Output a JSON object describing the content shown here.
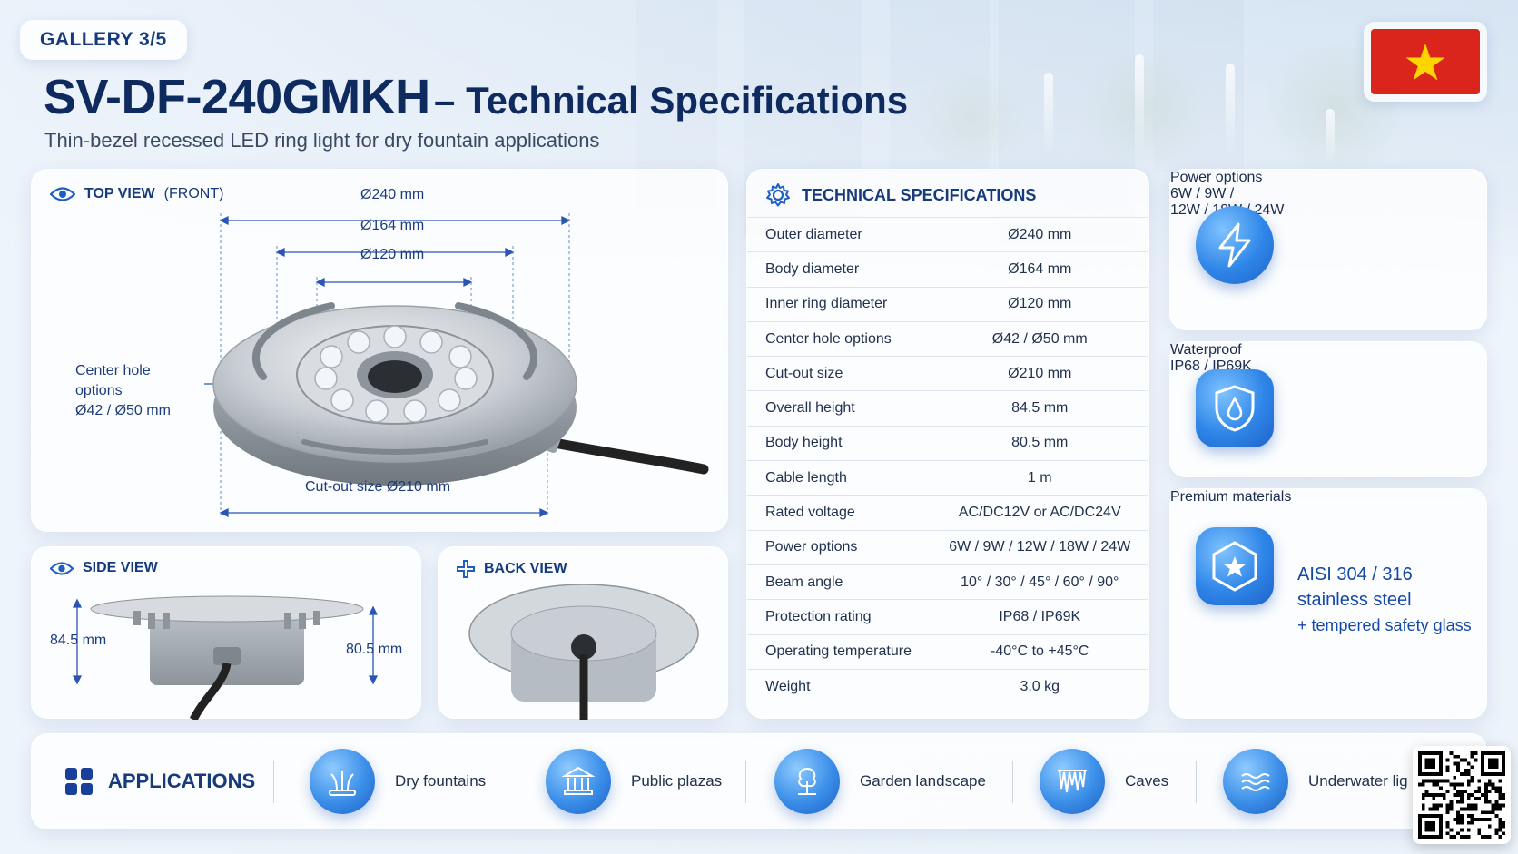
{
  "gallery": {
    "label": "GALLERY 3/5"
  },
  "header": {
    "model": "SV-DF-240GMKH",
    "title_rest": "– Technical Specifications",
    "subtitle": "Thin-bezel recessed LED ring light for dry fountain applications",
    "flag_icon": "vietnam-flag-icon"
  },
  "top_view": {
    "title": "TOP VIEW",
    "title_sub": "(FRONT)",
    "icon": "eye-icon",
    "dims": {
      "outer": "Ø240 mm",
      "body": "Ø164 mm",
      "inner": "Ø120 mm",
      "cutout": "Cut-out size Ø210 mm",
      "center_hole_line1": "Center hole",
      "center_hole_line2": "options",
      "center_hole_line3": "Ø42 / Ø50 mm"
    }
  },
  "side_view": {
    "title": "SIDE VIEW",
    "icon": "eye-icon",
    "overall_height": "84.5 mm",
    "body_height": "80.5 mm"
  },
  "back_view": {
    "title": "BACK VIEW",
    "icon": "plus-icon"
  },
  "specs": {
    "title": "TECHNICAL SPECIFICATIONS",
    "icon": "gear-icon",
    "rows": [
      {
        "k": "Outer diameter",
        "v": "Ø240 mm"
      },
      {
        "k": "Body diameter",
        "v": "Ø164 mm"
      },
      {
        "k": "Inner ring diameter",
        "v": "Ø120 mm"
      },
      {
        "k": "Center hole options",
        "v": "Ø42 / Ø50 mm"
      },
      {
        "k": "Cut-out size",
        "v": "Ø210 mm"
      },
      {
        "k": "Overall height",
        "v": "84.5 mm"
      },
      {
        "k": "Body height",
        "v": "80.5 mm"
      },
      {
        "k": "Cable length",
        "v": "1 m"
      },
      {
        "k": "Rated voltage",
        "v": "AC/DC12V or AC/DC24V"
      },
      {
        "k": "Power options",
        "v": "6W / 9W / 12W / 18W / 24W"
      },
      {
        "k": "Beam angle",
        "v": "10° / 30° / 45° / 60° / 90°"
      },
      {
        "k": "Protection rating",
        "v": "IP68 / IP69K"
      },
      {
        "k": "Operating temperature",
        "v": "-40°C to +45°C"
      },
      {
        "k": "Weight",
        "v": "3.0 kg"
      }
    ]
  },
  "features": {
    "power": {
      "label": "Power options",
      "line1": "6W / 9W /",
      "line2": "12W / 18W / 24W",
      "icon": "lightning-icon"
    },
    "waterproof": {
      "label": "Waterproof",
      "value": "IP68 / IP69K",
      "icon": "water-drop-shield-icon"
    },
    "materials": {
      "label": "Premium materials",
      "line1": "AISI 304 / 316",
      "line2": "stainless steel",
      "line3": "+ tempered safety glass",
      "icon": "star-hexagon-icon"
    }
  },
  "applications": {
    "title": "APPLICATIONS",
    "icon": "grid-icon",
    "items": [
      {
        "label": "Dry fountains",
        "icon": "fountain-icon"
      },
      {
        "label": "Public plazas",
        "icon": "building-icon"
      },
      {
        "label": "Garden landscape",
        "icon": "tree-icon"
      },
      {
        "label": "Caves",
        "icon": "cave-icon"
      },
      {
        "label": "Underwater lig",
        "icon": "waves-icon"
      }
    ]
  },
  "qr": {
    "icon": "qr-code-icon"
  },
  "colors": {
    "brand_navy": "#0f2a5f",
    "accent_blue": "#1648a8",
    "icon_blue": "#2f86e8",
    "flag_red": "#da251d",
    "flag_star": "#ffd500"
  }
}
